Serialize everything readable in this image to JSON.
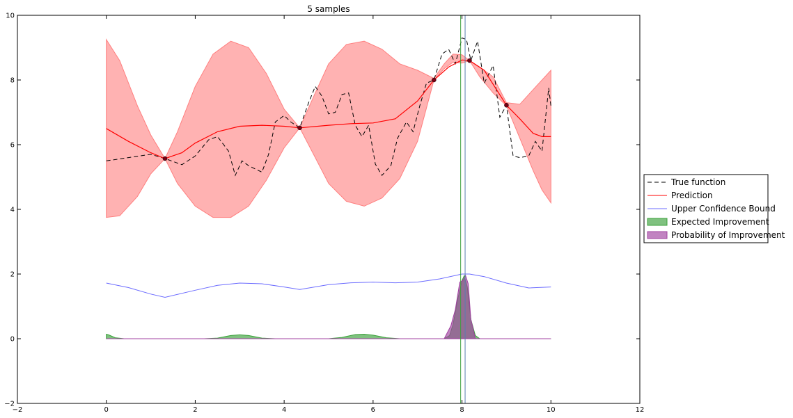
{
  "chart_data": {
    "type": "line",
    "title": "5 samples",
    "xlabel": "",
    "ylabel": "",
    "xlim": [
      -2,
      12
    ],
    "ylim": [
      -2,
      10
    ],
    "x_ticks": [
      -2,
      0,
      2,
      4,
      6,
      8,
      10,
      12
    ],
    "y_ticks": [
      -2,
      0,
      2,
      4,
      6,
      8,
      10
    ],
    "grid": false,
    "legend_position": "right",
    "colors": {
      "true_function": "#000000",
      "prediction": "#ff0000",
      "band": "#ff7f7f",
      "ucb": "#6b6bff",
      "ei_fill": "#3aa03a",
      "pi_fill": "#a040a0",
      "vline_ei": "#3aa03a",
      "vline_pi": "#5a7fb0"
    },
    "vertical_lines": [
      7.97,
      8.07
    ],
    "samples": {
      "x": [
        1.32,
        4.35,
        7.37,
        8.17,
        9.0
      ],
      "y": [
        5.57,
        6.52,
        8.0,
        8.6,
        7.22
      ]
    },
    "series": [
      {
        "name": "True function",
        "style": "dashed",
        "x": [
          0,
          0.5,
          1.0,
          1.32,
          1.7,
          2.0,
          2.3,
          2.5,
          2.75,
          2.9,
          3.05,
          3.2,
          3.35,
          3.5,
          3.65,
          3.8,
          4.0,
          4.15,
          4.35,
          4.55,
          4.7,
          4.85,
          5.0,
          5.15,
          5.3,
          5.45,
          5.6,
          5.75,
          5.9,
          6.05,
          6.2,
          6.4,
          6.55,
          6.75,
          6.9,
          7.05,
          7.2,
          7.37,
          7.55,
          7.7,
          7.85,
          8.0,
          8.1,
          8.2,
          8.35,
          8.5,
          8.7,
          8.85,
          9.0,
          9.15,
          9.3,
          9.5,
          9.65,
          9.8,
          9.95,
          10.0
        ],
        "y": [
          5.5,
          5.6,
          5.7,
          5.57,
          5.38,
          5.65,
          6.15,
          6.25,
          5.8,
          5.05,
          5.5,
          5.35,
          5.25,
          5.15,
          5.7,
          6.7,
          6.9,
          6.7,
          6.52,
          7.3,
          7.8,
          7.5,
          6.95,
          7.0,
          7.55,
          7.6,
          6.6,
          6.25,
          6.6,
          5.4,
          5.05,
          5.35,
          6.2,
          6.7,
          6.4,
          7.2,
          7.9,
          8.0,
          8.8,
          8.95,
          8.5,
          9.3,
          9.25,
          8.6,
          9.2,
          7.9,
          8.45,
          6.85,
          7.22,
          5.65,
          5.6,
          5.65,
          6.1,
          5.8,
          7.75,
          7.2
        ]
      },
      {
        "name": "Prediction",
        "style": "solid",
        "x": [
          0,
          0.5,
          1.0,
          1.32,
          1.7,
          2.0,
          2.5,
          3.0,
          3.5,
          4.0,
          4.35,
          5.0,
          5.5,
          6.0,
          6.5,
          7.0,
          7.37,
          7.7,
          8.0,
          8.17,
          8.5,
          9.0,
          9.3,
          9.6,
          9.8,
          10.0
        ],
        "y": [
          6.5,
          6.1,
          5.75,
          5.57,
          5.75,
          6.05,
          6.4,
          6.57,
          6.6,
          6.57,
          6.52,
          6.6,
          6.65,
          6.67,
          6.8,
          7.35,
          8.0,
          8.4,
          8.62,
          8.6,
          8.3,
          7.22,
          6.8,
          6.35,
          6.25,
          6.25
        ]
      },
      {
        "name": "Upper Confidence Bound",
        "style": "solid",
        "x": [
          0,
          0.5,
          1.0,
          1.32,
          2.0,
          2.5,
          3.0,
          3.5,
          4.0,
          4.35,
          5.0,
          5.5,
          6.0,
          6.5,
          7.0,
          7.5,
          8.0,
          8.17,
          8.5,
          9.0,
          9.5,
          10.0
        ],
        "y": [
          1.72,
          1.58,
          1.38,
          1.28,
          1.5,
          1.65,
          1.72,
          1.7,
          1.6,
          1.52,
          1.67,
          1.73,
          1.75,
          1.73,
          1.75,
          1.85,
          2.0,
          2.0,
          1.92,
          1.72,
          1.57,
          1.6
        ]
      },
      {
        "name": "Expected Improvement",
        "style": "fill",
        "x": [
          0,
          0.05,
          0.2,
          0.4,
          2.2,
          2.5,
          2.8,
          3.0,
          3.2,
          3.5,
          3.8,
          5.0,
          5.3,
          5.6,
          5.8,
          6.0,
          6.3,
          6.6,
          7.6,
          7.72,
          7.8,
          7.9,
          8.0,
          8.05,
          8.12,
          8.2,
          8.3,
          8.4,
          10.0
        ],
        "y": [
          0.14,
          0.12,
          0.03,
          0.0,
          0.0,
          0.02,
          0.1,
          0.12,
          0.1,
          0.02,
          0.0,
          0.0,
          0.04,
          0.13,
          0.14,
          0.11,
          0.03,
          0.0,
          0.0,
          0.1,
          0.45,
          1.2,
          1.8,
          1.95,
          1.6,
          0.6,
          0.1,
          0.0,
          0.0
        ]
      },
      {
        "name": "Probability of Improvement",
        "style": "fill",
        "x": [
          0,
          7.6,
          7.75,
          7.85,
          7.95,
          8.02,
          8.08,
          8.14,
          8.2,
          8.3,
          10.0
        ],
        "y": [
          0.0,
          0.0,
          0.4,
          0.9,
          1.75,
          1.8,
          1.95,
          1.7,
          0.6,
          0.0,
          0.0
        ]
      }
    ],
    "confidence_band": {
      "x": [
        0,
        0.3,
        0.7,
        1.0,
        1.32,
        1.6,
        2.0,
        2.4,
        2.8,
        3.2,
        3.6,
        4.0,
        4.35,
        4.7,
        5.0,
        5.4,
        5.8,
        6.2,
        6.6,
        7.0,
        7.37,
        7.6,
        7.8,
        8.0,
        8.17,
        8.4,
        8.7,
        9.0,
        9.3,
        9.6,
        9.8,
        10.0
      ],
      "upper": [
        9.25,
        8.6,
        7.2,
        6.3,
        5.57,
        6.4,
        7.8,
        8.8,
        9.2,
        9.0,
        8.2,
        7.1,
        6.52,
        7.6,
        8.5,
        9.1,
        9.2,
        8.95,
        8.5,
        8.3,
        8.05,
        8.5,
        8.8,
        8.78,
        8.6,
        8.4,
        8.1,
        7.3,
        7.25,
        7.7,
        8.0,
        8.3
      ],
      "lower": [
        3.75,
        3.8,
        4.4,
        5.1,
        5.57,
        4.8,
        4.1,
        3.75,
        3.75,
        4.1,
        4.9,
        5.9,
        6.52,
        5.6,
        4.8,
        4.25,
        4.1,
        4.35,
        4.95,
        6.1,
        8.0,
        8.35,
        8.55,
        8.52,
        8.6,
        8.1,
        7.6,
        7.2,
        6.2,
        5.2,
        4.6,
        4.2
      ]
    },
    "legend": {
      "entries": [
        "True function",
        "Prediction",
        "Upper Confidence Bound",
        "Expected Improvement",
        "Probability of Improvement"
      ]
    }
  }
}
